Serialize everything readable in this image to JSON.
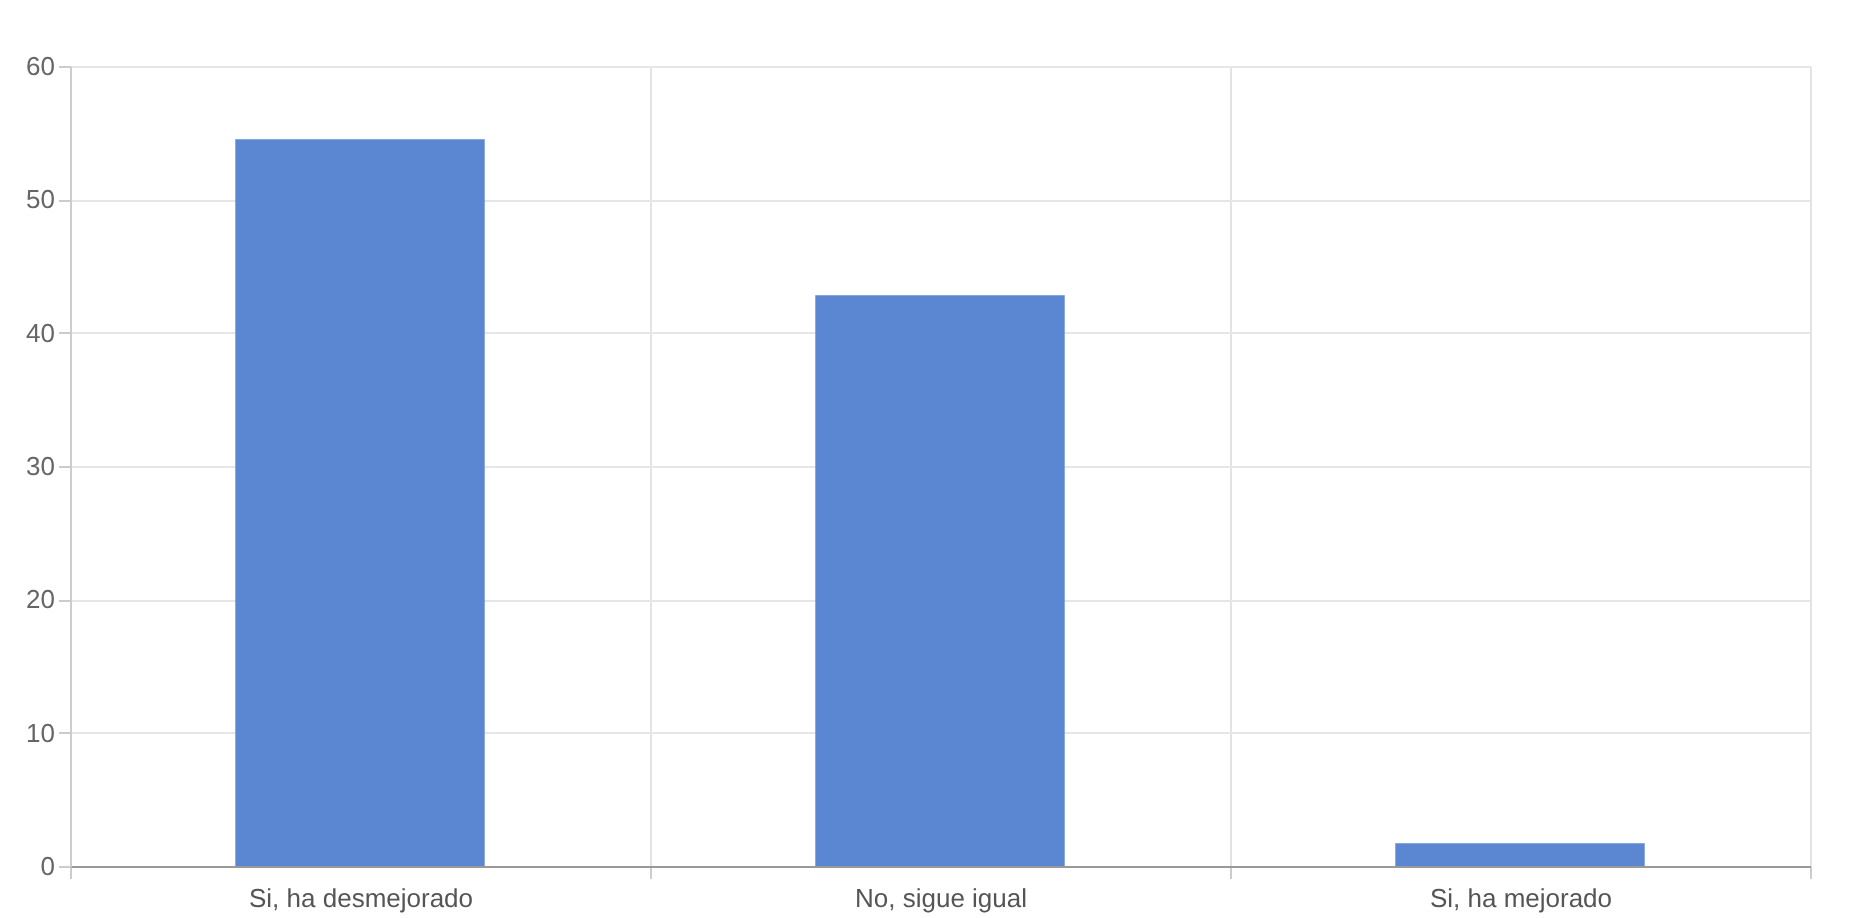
{
  "chart_data": {
    "type": "bar",
    "categories": [
      "Si, ha desmejorado",
      "No, sigue igual",
      "Si, ha mejorado"
    ],
    "values": [
      54.5,
      42.8,
      1.7
    ],
    "color": "#5b87d2",
    "ylim": [
      0,
      60
    ],
    "yticks": [
      0,
      10,
      20,
      30,
      40,
      50,
      60
    ],
    "grid": true
  }
}
